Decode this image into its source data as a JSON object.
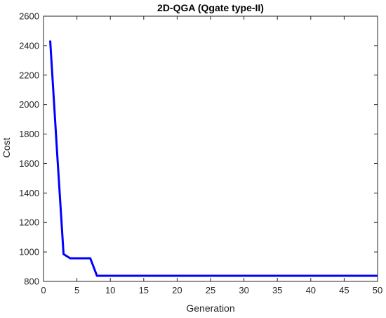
{
  "chart_data": {
    "type": "line",
    "title": "2D-QGA (Qgate type-II)",
    "xlabel": "Generation",
    "ylabel": "Cost",
    "xlim": [
      0,
      50
    ],
    "ylim": [
      800,
      2600
    ],
    "xticks": [
      0,
      5,
      10,
      15,
      20,
      25,
      30,
      35,
      40,
      45,
      50
    ],
    "yticks": [
      800,
      1000,
      1200,
      1400,
      1600,
      1800,
      2000,
      2200,
      2400,
      2600
    ],
    "grid": false,
    "legend": "none",
    "series": [
      {
        "color": "#0000ff",
        "x": [
          1,
          2,
          3,
          4,
          5,
          6,
          7,
          8,
          9,
          10,
          15,
          20,
          25,
          30,
          35,
          40,
          45,
          50
        ],
        "y": [
          2435,
          1700,
          985,
          957,
          957,
          957,
          957,
          838,
          838,
          838,
          838,
          838,
          838,
          838,
          838,
          838,
          838,
          838
        ]
      }
    ]
  }
}
